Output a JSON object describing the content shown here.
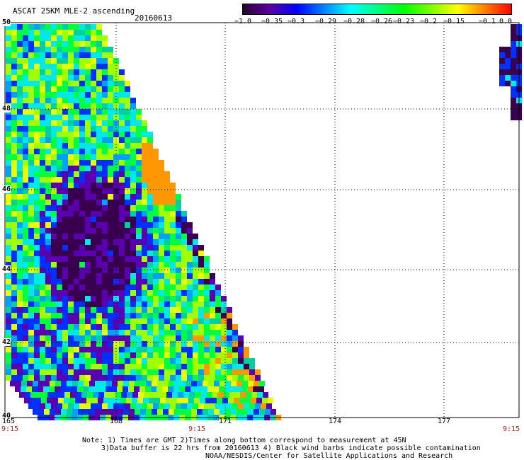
{
  "header": {
    "title": "ASCAT 25KM MLE-2 ascending",
    "date": "20160613"
  },
  "colorbar": {
    "tick_labels": [
      "−1.0",
      "−0.35",
      "−0.3",
      "−0.29",
      "−0.28",
      "−0.26",
      "−0.23",
      "−0.2",
      "−0.15",
      "−0.1",
      "0.0"
    ],
    "colors": [
      "#2a0030",
      "#5a00a0",
      "#0000ff",
      "#0080ff",
      "#00ffff",
      "#00ff80",
      "#00ff00",
      "#80ff00",
      "#ffff00",
      "#ff8000",
      "#ff0000"
    ]
  },
  "map": {
    "lat_labels": [
      "50",
      "48",
      "46",
      "44",
      "42",
      "40"
    ],
    "lon_labels": [
      "165",
      "168",
      "171",
      "174",
      "177"
    ],
    "time_labels": [
      "9:15",
      "9:15",
      "9:15"
    ],
    "palette": {
      "dark_purple": "#3a0050",
      "purple": "#5a00b0",
      "blue": "#0030ff",
      "sky": "#00a0ff",
      "cyan": "#00e8e8",
      "teal": "#00d0a0",
      "green": "#00ff40",
      "lime": "#a0ff00",
      "yellow": "#e8ff00",
      "orange": "#ff9800"
    }
  },
  "notes": {
    "line1": "Note: 1) Times are GMT 2)Times along bottom correspond to measurement at 45N",
    "line2": "3)Data buffer is 22 hrs from 20160613 4) Black wind barbs indicate possible contamination",
    "line3": "NOAA/NESDIS/Center for Satellite Applications and Research"
  }
}
